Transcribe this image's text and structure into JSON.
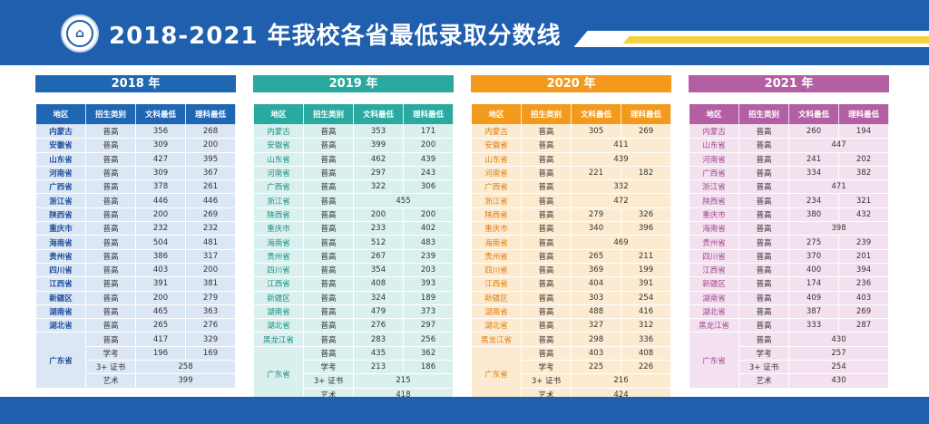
{
  "header": {
    "title": "2018-2021 年我校各省最低录取分数线",
    "logo_icon": "school-emblem-icon"
  },
  "columns": [
    "地区",
    "招生类别",
    "文科最低",
    "理科最低"
  ],
  "gd_region": "广东省",
  "panels": [
    {
      "year": "2018 年",
      "color": "#1f66b3",
      "rows": [
        {
          "region": "内蒙古",
          "type": "普高",
          "wen": "356",
          "li": "268"
        },
        {
          "region": "安徽省",
          "type": "普高",
          "wen": "309",
          "li": "200"
        },
        {
          "region": "山东省",
          "type": "普高",
          "wen": "427",
          "li": "395"
        },
        {
          "region": "河南省",
          "type": "普高",
          "wen": "309",
          "li": "367"
        },
        {
          "region": "广西省",
          "type": "普高",
          "wen": "378",
          "li": "261"
        },
        {
          "region": "浙江省",
          "type": "普高",
          "wen": "446",
          "li": "446"
        },
        {
          "region": "陕西省",
          "type": "普高",
          "wen": "200",
          "li": "269"
        },
        {
          "region": "重庆市",
          "type": "普高",
          "wen": "232",
          "li": "232"
        },
        {
          "region": "海南省",
          "type": "普高",
          "wen": "504",
          "li": "481"
        },
        {
          "region": "贵州省",
          "type": "普高",
          "wen": "386",
          "li": "317"
        },
        {
          "region": "四川省",
          "type": "普高",
          "wen": "403",
          "li": "200"
        },
        {
          "region": "江西省",
          "type": "普高",
          "wen": "391",
          "li": "381"
        },
        {
          "region": "新疆区",
          "type": "普高",
          "wen": "200",
          "li": "279"
        },
        {
          "region": "湖南省",
          "type": "普高",
          "wen": "465",
          "li": "363"
        },
        {
          "region": "湖北省",
          "type": "普高",
          "wen": "265",
          "li": "276"
        }
      ],
      "gd_rows": [
        {
          "type": "普高",
          "wen": "417",
          "li": "329"
        },
        {
          "type": "学考",
          "wen": "196",
          "li": "169"
        },
        {
          "type": "3+ 证书",
          "merged": "258"
        },
        {
          "type": "艺术",
          "merged": "399"
        }
      ]
    },
    {
      "year": "2019 年",
      "color": "#2aa9a0",
      "rows": [
        {
          "region": "内蒙古",
          "type": "普高",
          "wen": "353",
          "li": "171"
        },
        {
          "region": "安徽省",
          "type": "普高",
          "wen": "399",
          "li": "200"
        },
        {
          "region": "山东省",
          "type": "普高",
          "wen": "462",
          "li": "439"
        },
        {
          "region": "河南省",
          "type": "普高",
          "wen": "297",
          "li": "243"
        },
        {
          "region": "广西省",
          "type": "普高",
          "wen": "322",
          "li": "306"
        },
        {
          "region": "浙江省",
          "type": "普高",
          "merged": "455"
        },
        {
          "region": "陕西省",
          "type": "普高",
          "wen": "200",
          "li": "200"
        },
        {
          "region": "重庆市",
          "type": "普高",
          "wen": "233",
          "li": "402"
        },
        {
          "region": "海南省",
          "type": "普高",
          "wen": "512",
          "li": "483"
        },
        {
          "region": "贵州省",
          "type": "普高",
          "wen": "267",
          "li": "239"
        },
        {
          "region": "四川省",
          "type": "普高",
          "wen": "354",
          "li": "203"
        },
        {
          "region": "江西省",
          "type": "普高",
          "wen": "408",
          "li": "393"
        },
        {
          "region": "新疆区",
          "type": "普高",
          "wen": "324",
          "li": "189"
        },
        {
          "region": "湖南省",
          "type": "普高",
          "wen": "479",
          "li": "373"
        },
        {
          "region": "湖北省",
          "type": "普高",
          "wen": "276",
          "li": "297"
        },
        {
          "region": "黑龙江省",
          "type": "普高",
          "wen": "283",
          "li": "256"
        }
      ],
      "gd_rows": [
        {
          "type": "普高",
          "wen": "435",
          "li": "362"
        },
        {
          "type": "学考",
          "wen": "213",
          "li": "186"
        },
        {
          "type": "3+ 证书",
          "merged": "215"
        },
        {
          "type": "艺术",
          "merged": "418"
        }
      ]
    },
    {
      "year": "2020 年",
      "color": "#f39a1c",
      "rows": [
        {
          "region": "内蒙古",
          "type": "普高",
          "wen": "305",
          "li": "269"
        },
        {
          "region": "安徽省",
          "type": "普高",
          "merged": "411"
        },
        {
          "region": "山东省",
          "type": "普高",
          "merged": "439"
        },
        {
          "region": "河南省",
          "type": "普高",
          "wen": "221",
          "li": "182"
        },
        {
          "region": "广西省",
          "type": "普高",
          "merged": "332"
        },
        {
          "region": "浙江省",
          "type": "普高",
          "merged": "472"
        },
        {
          "region": "陕西省",
          "type": "普高",
          "wen": "279",
          "li": "326"
        },
        {
          "region": "重庆市",
          "type": "普高",
          "wen": "340",
          "li": "396"
        },
        {
          "region": "海南省",
          "type": "普高",
          "merged": "469"
        },
        {
          "region": "贵州省",
          "type": "普高",
          "wen": "265",
          "li": "211"
        },
        {
          "region": "四川省",
          "type": "普高",
          "wen": "369",
          "li": "199"
        },
        {
          "region": "江西省",
          "type": "普高",
          "wen": "404",
          "li": "391"
        },
        {
          "region": "新疆区",
          "type": "普高",
          "wen": "303",
          "li": "254"
        },
        {
          "region": "湖南省",
          "type": "普高",
          "wen": "488",
          "li": "416"
        },
        {
          "region": "湖北省",
          "type": "普高",
          "wen": "327",
          "li": "312"
        },
        {
          "region": "黑龙江省",
          "type": "普高",
          "wen": "298",
          "li": "336"
        }
      ],
      "gd_rows": [
        {
          "type": "普高",
          "wen": "403",
          "li": "408"
        },
        {
          "type": "学考",
          "wen": "225",
          "li": "226"
        },
        {
          "type": "3+ 证书",
          "merged": "216"
        },
        {
          "type": "艺术",
          "merged": "424"
        }
      ]
    },
    {
      "year": "2021 年",
      "color": "#b45fa4",
      "rows": [
        {
          "region": "内蒙古",
          "type": "普高",
          "wen": "260",
          "li": "194"
        },
        {
          "region": "山东省",
          "type": "普高",
          "merged": "447"
        },
        {
          "region": "河南省",
          "type": "普高",
          "wen": "241",
          "li": "202"
        },
        {
          "region": "广西省",
          "type": "普高",
          "wen": "334",
          "li": "382"
        },
        {
          "region": "浙江省",
          "type": "普高",
          "merged": "471"
        },
        {
          "region": "陕西省",
          "type": "普高",
          "wen": "234",
          "li": "321"
        },
        {
          "region": "重庆市",
          "type": "普高",
          "wen": "380",
          "li": "432"
        },
        {
          "region": "海南省",
          "type": "普高",
          "merged": "398"
        },
        {
          "region": "贵州省",
          "type": "普高",
          "wen": "275",
          "li": "239"
        },
        {
          "region": "四川省",
          "type": "普高",
          "wen": "370",
          "li": "201"
        },
        {
          "region": "江西省",
          "type": "普高",
          "wen": "400",
          "li": "394"
        },
        {
          "region": "新疆区",
          "type": "普高",
          "wen": "174",
          "li": "236"
        },
        {
          "region": "湖南省",
          "type": "普高",
          "wen": "409",
          "li": "403"
        },
        {
          "region": "湖北省",
          "type": "普高",
          "wen": "387",
          "li": "269"
        },
        {
          "region": "黑龙江省",
          "type": "普高",
          "wen": "333",
          "li": "287"
        }
      ],
      "gd_rows": [
        {
          "type": "普高",
          "merged": "430"
        },
        {
          "type": "学考",
          "merged": "257"
        },
        {
          "type": "3+ 证书",
          "merged": "254"
        },
        {
          "type": "艺术",
          "merged": "430"
        }
      ]
    }
  ]
}
